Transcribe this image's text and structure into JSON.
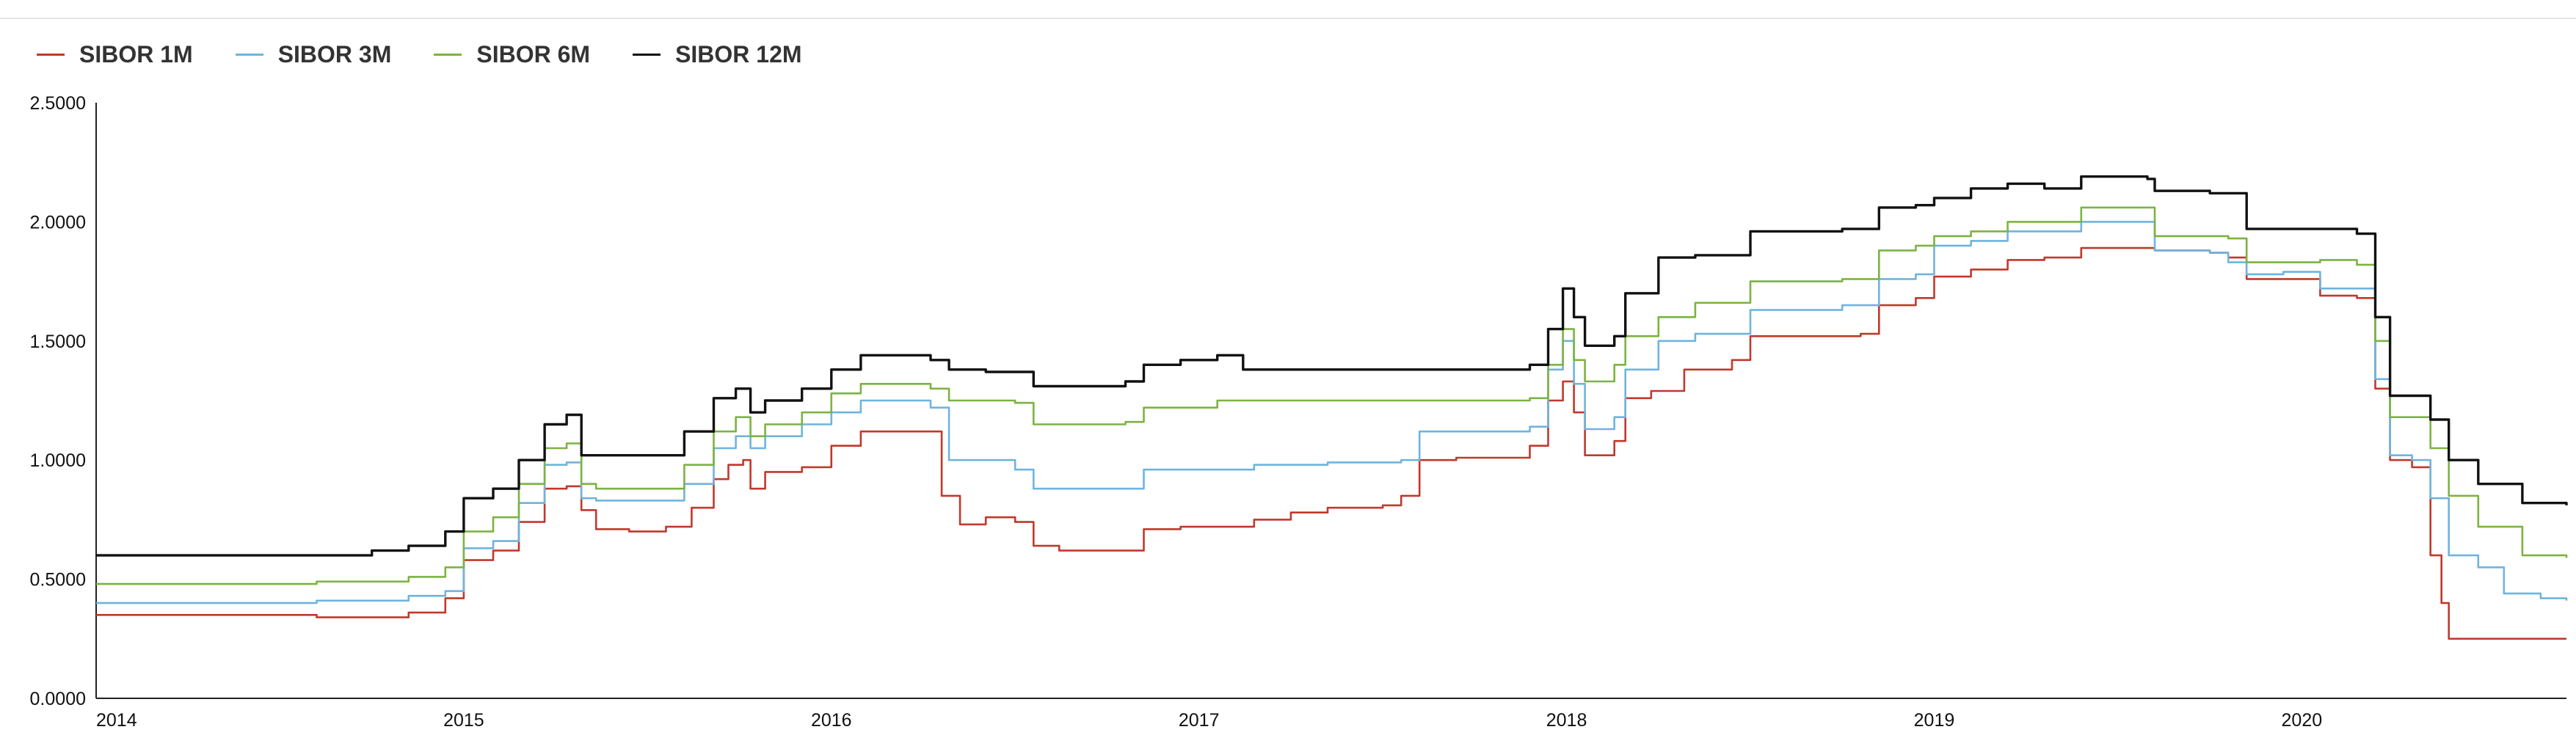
{
  "chart_data": {
    "type": "line",
    "title": "",
    "xlabel": "",
    "ylabel": "",
    "xlim": [
      2014.0,
      2020.72
    ],
    "ylim": [
      0,
      2.5
    ],
    "grid": false,
    "legend_position": "top-left",
    "x_ticks": [
      "2014",
      "2015",
      "2016",
      "2017",
      "2018",
      "2019",
      "2020"
    ],
    "y_ticks": [
      "0.0000",
      "0.5000",
      "1.0000",
      "1.5000",
      "2.0000",
      "2.5000"
    ],
    "series": [
      {
        "name": "SIBOR 1M",
        "color": "#c0392b",
        "points": [
          [
            2014.0,
            0.35
          ],
          [
            2014.3,
            0.35
          ],
          [
            2014.6,
            0.34
          ],
          [
            2014.85,
            0.36
          ],
          [
            2014.95,
            0.42
          ],
          [
            2015.0,
            0.58
          ],
          [
            2015.08,
            0.62
          ],
          [
            2015.15,
            0.74
          ],
          [
            2015.22,
            0.88
          ],
          [
            2015.28,
            0.89
          ],
          [
            2015.32,
            0.79
          ],
          [
            2015.36,
            0.71
          ],
          [
            2015.45,
            0.7
          ],
          [
            2015.55,
            0.72
          ],
          [
            2015.62,
            0.8
          ],
          [
            2015.68,
            0.92
          ],
          [
            2015.72,
            0.98
          ],
          [
            2015.76,
            1.0
          ],
          [
            2015.78,
            0.88
          ],
          [
            2015.82,
            0.95
          ],
          [
            2015.92,
            0.97
          ],
          [
            2016.0,
            1.06
          ],
          [
            2016.08,
            1.12
          ],
          [
            2016.2,
            1.12
          ],
          [
            2016.27,
            1.12
          ],
          [
            2016.3,
            0.85
          ],
          [
            2016.35,
            0.73
          ],
          [
            2016.42,
            0.76
          ],
          [
            2016.5,
            0.74
          ],
          [
            2016.55,
            0.64
          ],
          [
            2016.62,
            0.62
          ],
          [
            2016.75,
            0.62
          ],
          [
            2016.8,
            0.62
          ],
          [
            2016.85,
            0.71
          ],
          [
            2016.95,
            0.72
          ],
          [
            2017.05,
            0.72
          ],
          [
            2017.15,
            0.75
          ],
          [
            2017.25,
            0.78
          ],
          [
            2017.35,
            0.8
          ],
          [
            2017.5,
            0.81
          ],
          [
            2017.55,
            0.85
          ],
          [
            2017.6,
            1.0
          ],
          [
            2017.7,
            1.01
          ],
          [
            2017.8,
            1.01
          ],
          [
            2017.9,
            1.06
          ],
          [
            2017.95,
            1.25
          ],
          [
            2017.99,
            1.33
          ],
          [
            2018.02,
            1.2
          ],
          [
            2018.05,
            1.02
          ],
          [
            2018.13,
            1.08
          ],
          [
            2018.16,
            1.26
          ],
          [
            2018.23,
            1.29
          ],
          [
            2018.32,
            1.38
          ],
          [
            2018.45,
            1.42
          ],
          [
            2018.5,
            1.52
          ],
          [
            2018.75,
            1.52
          ],
          [
            2018.8,
            1.53
          ],
          [
            2018.85,
            1.65
          ],
          [
            2018.95,
            1.68
          ],
          [
            2019.0,
            1.77
          ],
          [
            2019.1,
            1.8
          ],
          [
            2019.2,
            1.84
          ],
          [
            2019.3,
            1.85
          ],
          [
            2019.4,
            1.89
          ],
          [
            2019.6,
            1.88
          ],
          [
            2019.75,
            1.87
          ],
          [
            2019.8,
            1.85
          ],
          [
            2019.85,
            1.76
          ],
          [
            2019.95,
            1.76
          ],
          [
            2020.05,
            1.69
          ],
          [
            2020.15,
            1.68
          ],
          [
            2020.2,
            1.3
          ],
          [
            2020.24,
            1.0
          ],
          [
            2020.3,
            0.97
          ],
          [
            2020.35,
            0.6
          ],
          [
            2020.38,
            0.4
          ],
          [
            2020.4,
            0.25
          ],
          [
            2020.5,
            0.25
          ],
          [
            2020.72,
            0.25
          ]
        ]
      },
      {
        "name": "SIBOR 3M",
        "color": "#6fb4dd",
        "points": [
          [
            2014.0,
            0.4
          ],
          [
            2014.3,
            0.4
          ],
          [
            2014.6,
            0.41
          ],
          [
            2014.85,
            0.43
          ],
          [
            2014.95,
            0.45
          ],
          [
            2015.0,
            0.63
          ],
          [
            2015.08,
            0.66
          ],
          [
            2015.15,
            0.82
          ],
          [
            2015.22,
            0.98
          ],
          [
            2015.28,
            0.99
          ],
          [
            2015.32,
            0.84
          ],
          [
            2015.36,
            0.83
          ],
          [
            2015.5,
            0.83
          ],
          [
            2015.6,
            0.9
          ],
          [
            2015.68,
            1.05
          ],
          [
            2015.74,
            1.1
          ],
          [
            2015.78,
            1.05
          ],
          [
            2015.82,
            1.1
          ],
          [
            2015.92,
            1.15
          ],
          [
            2016.0,
            1.2
          ],
          [
            2016.08,
            1.25
          ],
          [
            2016.2,
            1.25
          ],
          [
            2016.27,
            1.22
          ],
          [
            2016.32,
            1.0
          ],
          [
            2016.42,
            1.0
          ],
          [
            2016.5,
            0.96
          ],
          [
            2016.55,
            0.88
          ],
          [
            2016.75,
            0.88
          ],
          [
            2016.8,
            0.88
          ],
          [
            2016.85,
            0.96
          ],
          [
            2016.95,
            0.96
          ],
          [
            2017.05,
            0.96
          ],
          [
            2017.15,
            0.98
          ],
          [
            2017.35,
            0.99
          ],
          [
            2017.55,
            1.0
          ],
          [
            2017.6,
            1.12
          ],
          [
            2017.75,
            1.12
          ],
          [
            2017.9,
            1.14
          ],
          [
            2017.95,
            1.38
          ],
          [
            2017.99,
            1.5
          ],
          [
            2018.02,
            1.32
          ],
          [
            2018.05,
            1.13
          ],
          [
            2018.13,
            1.18
          ],
          [
            2018.16,
            1.38
          ],
          [
            2018.25,
            1.5
          ],
          [
            2018.35,
            1.53
          ],
          [
            2018.5,
            1.63
          ],
          [
            2018.75,
            1.65
          ],
          [
            2018.85,
            1.76
          ],
          [
            2018.95,
            1.78
          ],
          [
            2019.0,
            1.9
          ],
          [
            2019.1,
            1.92
          ],
          [
            2019.2,
            1.96
          ],
          [
            2019.4,
            2.0
          ],
          [
            2019.58,
            2.0
          ],
          [
            2019.6,
            1.88
          ],
          [
            2019.75,
            1.87
          ],
          [
            2019.8,
            1.83
          ],
          [
            2019.85,
            1.78
          ],
          [
            2019.95,
            1.79
          ],
          [
            2020.05,
            1.72
          ],
          [
            2020.15,
            1.72
          ],
          [
            2020.2,
            1.34
          ],
          [
            2020.24,
            1.02
          ],
          [
            2020.3,
            1.0
          ],
          [
            2020.35,
            0.84
          ],
          [
            2020.4,
            0.6
          ],
          [
            2020.48,
            0.55
          ],
          [
            2020.55,
            0.44
          ],
          [
            2020.65,
            0.42
          ],
          [
            2020.72,
            0.41
          ]
        ]
      },
      {
        "name": "SIBOR 6M",
        "color": "#7cb342",
        "points": [
          [
            2014.0,
            0.48
          ],
          [
            2014.3,
            0.48
          ],
          [
            2014.6,
            0.49
          ],
          [
            2014.85,
            0.51
          ],
          [
            2014.95,
            0.55
          ],
          [
            2015.0,
            0.7
          ],
          [
            2015.08,
            0.76
          ],
          [
            2015.15,
            0.9
          ],
          [
            2015.22,
            1.05
          ],
          [
            2015.28,
            1.07
          ],
          [
            2015.32,
            0.9
          ],
          [
            2015.36,
            0.88
          ],
          [
            2015.5,
            0.88
          ],
          [
            2015.6,
            0.98
          ],
          [
            2015.68,
            1.12
          ],
          [
            2015.74,
            1.18
          ],
          [
            2015.78,
            1.1
          ],
          [
            2015.82,
            1.15
          ],
          [
            2015.92,
            1.2
          ],
          [
            2016.0,
            1.28
          ],
          [
            2016.08,
            1.32
          ],
          [
            2016.2,
            1.32
          ],
          [
            2016.27,
            1.3
          ],
          [
            2016.32,
            1.25
          ],
          [
            2016.42,
            1.25
          ],
          [
            2016.5,
            1.24
          ],
          [
            2016.55,
            1.15
          ],
          [
            2016.75,
            1.15
          ],
          [
            2016.8,
            1.16
          ],
          [
            2016.85,
            1.22
          ],
          [
            2016.95,
            1.22
          ],
          [
            2017.05,
            1.25
          ],
          [
            2017.35,
            1.25
          ],
          [
            2017.55,
            1.25
          ],
          [
            2017.6,
            1.25
          ],
          [
            2017.9,
            1.26
          ],
          [
            2017.95,
            1.4
          ],
          [
            2017.99,
            1.55
          ],
          [
            2018.02,
            1.42
          ],
          [
            2018.05,
            1.33
          ],
          [
            2018.13,
            1.4
          ],
          [
            2018.16,
            1.52
          ],
          [
            2018.25,
            1.6
          ],
          [
            2018.35,
            1.66
          ],
          [
            2018.5,
            1.75
          ],
          [
            2018.75,
            1.76
          ],
          [
            2018.85,
            1.88
          ],
          [
            2018.95,
            1.9
          ],
          [
            2019.0,
            1.94
          ],
          [
            2019.1,
            1.96
          ],
          [
            2019.2,
            2.0
          ],
          [
            2019.4,
            2.06
          ],
          [
            2019.58,
            2.06
          ],
          [
            2019.6,
            1.94
          ],
          [
            2019.75,
            1.94
          ],
          [
            2019.8,
            1.93
          ],
          [
            2019.85,
            1.83
          ],
          [
            2019.95,
            1.83
          ],
          [
            2020.05,
            1.84
          ],
          [
            2020.15,
            1.82
          ],
          [
            2020.2,
            1.5
          ],
          [
            2020.24,
            1.18
          ],
          [
            2020.3,
            1.18
          ],
          [
            2020.35,
            1.05
          ],
          [
            2020.4,
            0.85
          ],
          [
            2020.48,
            0.72
          ],
          [
            2020.6,
            0.6
          ],
          [
            2020.72,
            0.59
          ]
        ]
      },
      {
        "name": "SIBOR 12M",
        "color": "#111111",
        "points": [
          [
            2014.0,
            0.6
          ],
          [
            2014.3,
            0.6
          ],
          [
            2014.6,
            0.6
          ],
          [
            2014.75,
            0.62
          ],
          [
            2014.85,
            0.64
          ],
          [
            2014.95,
            0.7
          ],
          [
            2015.0,
            0.84
          ],
          [
            2015.08,
            0.88
          ],
          [
            2015.15,
            1.0
          ],
          [
            2015.22,
            1.15
          ],
          [
            2015.28,
            1.19
          ],
          [
            2015.32,
            1.02
          ],
          [
            2015.36,
            1.02
          ],
          [
            2015.5,
            1.02
          ],
          [
            2015.6,
            1.12
          ],
          [
            2015.68,
            1.26
          ],
          [
            2015.74,
            1.3
          ],
          [
            2015.78,
            1.2
          ],
          [
            2015.82,
            1.25
          ],
          [
            2015.92,
            1.3
          ],
          [
            2016.0,
            1.38
          ],
          [
            2016.08,
            1.44
          ],
          [
            2016.2,
            1.44
          ],
          [
            2016.27,
            1.42
          ],
          [
            2016.32,
            1.38
          ],
          [
            2016.42,
            1.37
          ],
          [
            2016.5,
            1.37
          ],
          [
            2016.55,
            1.31
          ],
          [
            2016.75,
            1.31
          ],
          [
            2016.8,
            1.33
          ],
          [
            2016.85,
            1.4
          ],
          [
            2016.95,
            1.42
          ],
          [
            2017.05,
            1.44
          ],
          [
            2017.12,
            1.38
          ],
          [
            2017.35,
            1.38
          ],
          [
            2017.55,
            1.38
          ],
          [
            2017.6,
            1.38
          ],
          [
            2017.9,
            1.4
          ],
          [
            2017.95,
            1.55
          ],
          [
            2017.99,
            1.72
          ],
          [
            2018.02,
            1.6
          ],
          [
            2018.05,
            1.48
          ],
          [
            2018.13,
            1.52
          ],
          [
            2018.16,
            1.7
          ],
          [
            2018.25,
            1.85
          ],
          [
            2018.35,
            1.86
          ],
          [
            2018.5,
            1.96
          ],
          [
            2018.75,
            1.97
          ],
          [
            2018.85,
            2.06
          ],
          [
            2018.95,
            2.07
          ],
          [
            2019.0,
            2.1
          ],
          [
            2019.1,
            2.14
          ],
          [
            2019.2,
            2.16
          ],
          [
            2019.3,
            2.14
          ],
          [
            2019.4,
            2.19
          ],
          [
            2019.58,
            2.18
          ],
          [
            2019.6,
            2.13
          ],
          [
            2019.75,
            2.12
          ],
          [
            2019.8,
            2.12
          ],
          [
            2019.85,
            1.97
          ],
          [
            2019.95,
            1.97
          ],
          [
            2020.05,
            1.97
          ],
          [
            2020.15,
            1.95
          ],
          [
            2020.2,
            1.6
          ],
          [
            2020.24,
            1.27
          ],
          [
            2020.3,
            1.27
          ],
          [
            2020.35,
            1.17
          ],
          [
            2020.4,
            1.0
          ],
          [
            2020.48,
            0.9
          ],
          [
            2020.6,
            0.82
          ],
          [
            2020.72,
            0.81
          ]
        ]
      }
    ]
  }
}
